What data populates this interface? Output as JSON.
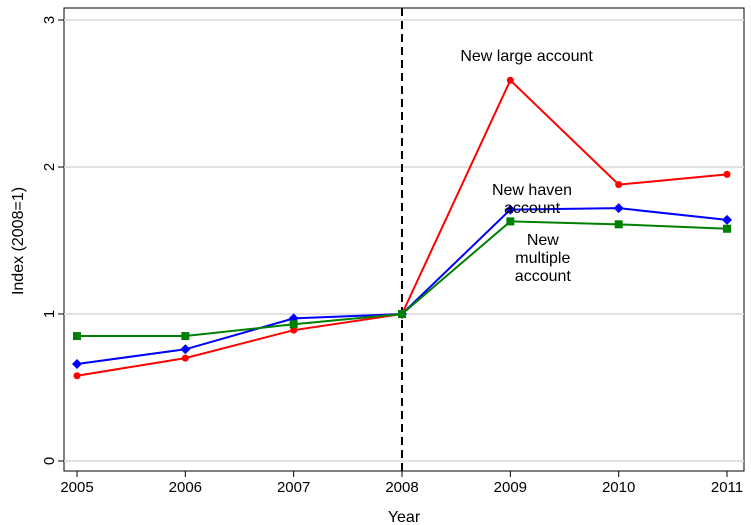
{
  "chart_data": {
    "type": "line",
    "title": "",
    "xlabel": "Year",
    "ylabel": "Index (2008=1)",
    "x": [
      2005,
      2006,
      2007,
      2008,
      2009,
      2010,
      2011
    ],
    "xlim": [
      2005,
      2011
    ],
    "ylim": [
      0,
      3
    ],
    "y_ticks": [
      0,
      1,
      2,
      3
    ],
    "grid": "horizontal",
    "legend": "none",
    "reference_line": {
      "x": 2008,
      "style": "dashed",
      "color": "#000000"
    },
    "series": [
      {
        "color": "#ff0000",
        "marker": "circle",
        "values": [
          0.58,
          0.7,
          0.89,
          1.0,
          2.59,
          1.88,
          1.95
        ]
      },
      {
        "color": "#0000ff",
        "marker": "diamond",
        "values": [
          0.66,
          0.76,
          0.97,
          1.0,
          1.71,
          1.72,
          1.64
        ]
      },
      {
        "color": "#008000",
        "marker": "square",
        "values": [
          0.85,
          0.85,
          0.93,
          1.0,
          1.63,
          1.61,
          1.58
        ]
      }
    ],
    "annotations": [
      {
        "text": "New large account",
        "lines": [
          "New large account"
        ],
        "x": 2009.15,
        "y": 2.72,
        "color": "#000000"
      },
      {
        "text": "New haven account",
        "lines": [
          "New haven",
          "account"
        ],
        "x": 2009.2,
        "y": 1.81,
        "color": "#000000"
      },
      {
        "text": "New multiple account",
        "lines": [
          "New",
          "multiple",
          "account"
        ],
        "x": 2009.3,
        "y": 1.47,
        "color": "#000000"
      }
    ]
  }
}
